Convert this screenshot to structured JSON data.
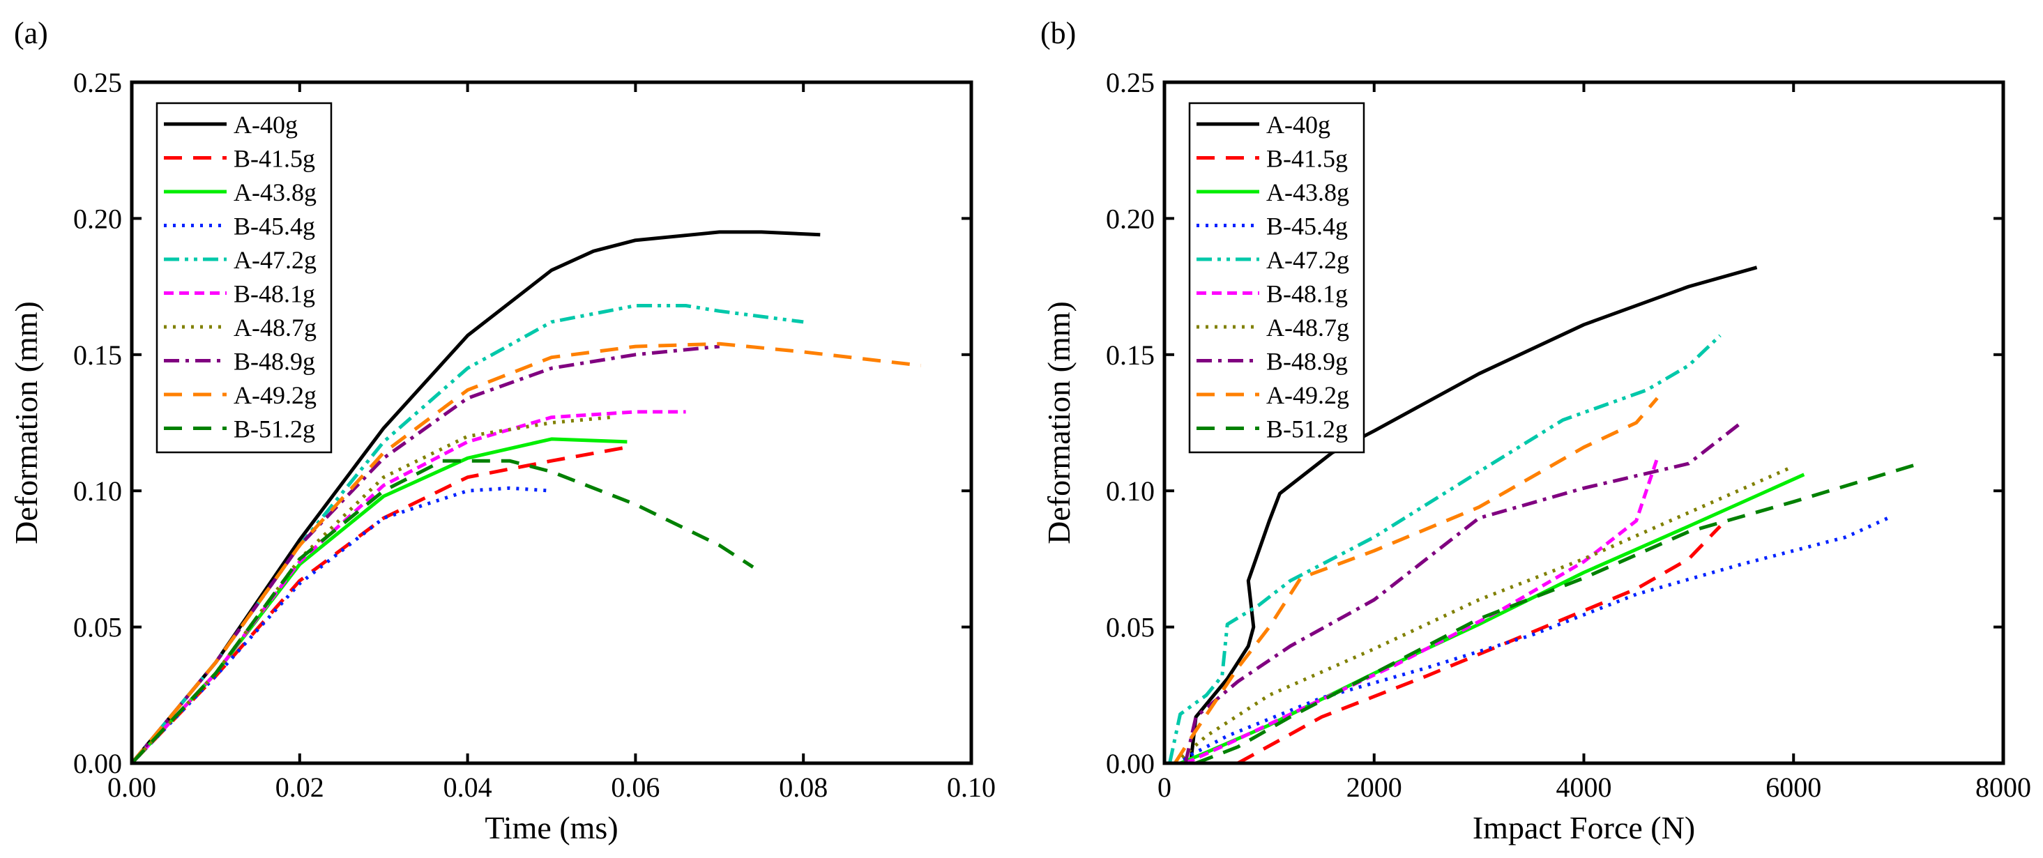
{
  "chart_data": [
    {
      "panel": "(a)",
      "type": "line",
      "xlabel": "Time (ms)",
      "ylabel": "Deformation (mm)",
      "xlim": [
        0,
        0.1
      ],
      "ylim": [
        0,
        0.25
      ],
      "xticks": [
        "0.00",
        "0.02",
        "0.04",
        "0.06",
        "0.08",
        "0.10"
      ],
      "yticks": [
        "0.00",
        "0.05",
        "0.10",
        "0.15",
        "0.20",
        "0.25"
      ],
      "legend_position": "top-left",
      "series": [
        {
          "name": "A-40g",
          "color": "#000000",
          "dash": "solid",
          "points": [
            [
              0,
              0
            ],
            [
              0.01,
              0.037
            ],
            [
              0.02,
              0.082
            ],
            [
              0.03,
              0.123
            ],
            [
              0.04,
              0.157
            ],
            [
              0.05,
              0.181
            ],
            [
              0.055,
              0.188
            ],
            [
              0.06,
              0.192
            ],
            [
              0.07,
              0.195
            ],
            [
              0.075,
              0.195
            ],
            [
              0.082,
              0.194
            ]
          ]
        },
        {
          "name": "B-41.5g",
          "color": "#ff0000",
          "dash": "long-dash",
          "points": [
            [
              0,
              0
            ],
            [
              0.01,
              0.032
            ],
            [
              0.02,
              0.067
            ],
            [
              0.03,
              0.09
            ],
            [
              0.04,
              0.105
            ],
            [
              0.05,
              0.111
            ],
            [
              0.059,
              0.116
            ]
          ]
        },
        {
          "name": "A-43.8g",
          "color": "#00ee00",
          "dash": "solid",
          "points": [
            [
              0,
              0
            ],
            [
              0.01,
              0.033
            ],
            [
              0.02,
              0.073
            ],
            [
              0.03,
              0.098
            ],
            [
              0.04,
              0.112
            ],
            [
              0.05,
              0.119
            ],
            [
              0.059,
              0.118
            ]
          ]
        },
        {
          "name": "B-45.4g",
          "color": "#0022ff",
          "dash": "dot",
          "points": [
            [
              0,
              0
            ],
            [
              0.01,
              0.032
            ],
            [
              0.02,
              0.066
            ],
            [
              0.03,
              0.09
            ],
            [
              0.04,
              0.1
            ],
            [
              0.045,
              0.101
            ],
            [
              0.05,
              0.1
            ]
          ]
        },
        {
          "name": "A-47.2g",
          "color": "#00c8aa",
          "dash": "dash-dot-dot",
          "points": [
            [
              0,
              0
            ],
            [
              0.01,
              0.037
            ],
            [
              0.02,
              0.08
            ],
            [
              0.03,
              0.118
            ],
            [
              0.04,
              0.145
            ],
            [
              0.05,
              0.162
            ],
            [
              0.06,
              0.168
            ],
            [
              0.066,
              0.168
            ],
            [
              0.07,
              0.166
            ],
            [
              0.08,
              0.162
            ]
          ]
        },
        {
          "name": "B-48.1g",
          "color": "#ff00ff",
          "dash": "short-dash",
          "points": [
            [
              0,
              0
            ],
            [
              0.01,
              0.033
            ],
            [
              0.02,
              0.074
            ],
            [
              0.03,
              0.102
            ],
            [
              0.04,
              0.118
            ],
            [
              0.05,
              0.127
            ],
            [
              0.06,
              0.129
            ],
            [
              0.066,
              0.129
            ]
          ]
        },
        {
          "name": "A-48.7g",
          "color": "#808000",
          "dash": "dot",
          "points": [
            [
              0,
              0
            ],
            [
              0.01,
              0.033
            ],
            [
              0.02,
              0.075
            ],
            [
              0.03,
              0.105
            ],
            [
              0.04,
              0.12
            ],
            [
              0.05,
              0.125
            ],
            [
              0.057,
              0.127
            ]
          ]
        },
        {
          "name": "B-48.9g",
          "color": "#800080",
          "dash": "dash-dot",
          "points": [
            [
              0,
              0
            ],
            [
              0.01,
              0.037
            ],
            [
              0.02,
              0.08
            ],
            [
              0.03,
              0.112
            ],
            [
              0.04,
              0.134
            ],
            [
              0.05,
              0.145
            ],
            [
              0.06,
              0.15
            ],
            [
              0.07,
              0.153
            ]
          ]
        },
        {
          "name": "A-49.2g",
          "color": "#ff8000",
          "dash": "long-dash",
          "points": [
            [
              0,
              0
            ],
            [
              0.01,
              0.037
            ],
            [
              0.02,
              0.08
            ],
            [
              0.03,
              0.114
            ],
            [
              0.04,
              0.137
            ],
            [
              0.05,
              0.149
            ],
            [
              0.06,
              0.153
            ],
            [
              0.07,
              0.154
            ],
            [
              0.08,
              0.151
            ],
            [
              0.094,
              0.146
            ]
          ]
        },
        {
          "name": "B-51.2g",
          "color": "#008000",
          "dash": "long-dash",
          "points": [
            [
              0,
              0
            ],
            [
              0.01,
              0.033
            ],
            [
              0.02,
              0.075
            ],
            [
              0.03,
              0.1
            ],
            [
              0.037,
              0.111
            ],
            [
              0.045,
              0.111
            ],
            [
              0.05,
              0.107
            ],
            [
              0.06,
              0.095
            ],
            [
              0.07,
              0.08
            ],
            [
              0.074,
              0.072
            ]
          ]
        }
      ]
    },
    {
      "panel": "(b)",
      "type": "line",
      "xlabel": "Impact Force (N)",
      "ylabel": "Deformation (mm)",
      "xlim": [
        0,
        8000
      ],
      "ylim": [
        0,
        0.25
      ],
      "xticks": [
        "0",
        "2000",
        "4000",
        "6000",
        "8000"
      ],
      "yticks": [
        "0.00",
        "0.05",
        "0.10",
        "0.15",
        "0.20",
        "0.25"
      ],
      "legend_position": "top-left",
      "series": [
        {
          "name": "A-40g",
          "color": "#000000",
          "dash": "solid",
          "points": [
            [
              250,
              0
            ],
            [
              300,
              0.017
            ],
            [
              600,
              0.031
            ],
            [
              800,
              0.043
            ],
            [
              850,
              0.05
            ],
            [
              800,
              0.067
            ],
            [
              1000,
              0.089
            ],
            [
              1100,
              0.099
            ],
            [
              1600,
              0.114
            ],
            [
              2000,
              0.122
            ],
            [
              3000,
              0.143
            ],
            [
              4000,
              0.161
            ],
            [
              5000,
              0.175
            ],
            [
              5650,
              0.182
            ]
          ]
        },
        {
          "name": "B-41.5g",
          "color": "#ff0000",
          "dash": "long-dash",
          "points": [
            [
              700,
              0
            ],
            [
              1500,
              0.017
            ],
            [
              2500,
              0.032
            ],
            [
              3500,
              0.048
            ],
            [
              4500,
              0.064
            ],
            [
              5000,
              0.075
            ],
            [
              5300,
              0.087
            ]
          ]
        },
        {
          "name": "A-43.8g",
          "color": "#00ee00",
          "dash": "solid",
          "points": [
            [
              150,
              0
            ],
            [
              400,
              0.004
            ],
            [
              1000,
              0.014
            ],
            [
              2000,
              0.033
            ],
            [
              3000,
              0.051
            ],
            [
              4000,
              0.07
            ],
            [
              5000,
              0.087
            ],
            [
              6100,
              0.106
            ]
          ]
        },
        {
          "name": "B-45.4g",
          "color": "#0022ff",
          "dash": "dot",
          "points": [
            [
              100,
              0
            ],
            [
              600,
              0.01
            ],
            [
              1500,
              0.024
            ],
            [
              2500,
              0.035
            ],
            [
              3500,
              0.047
            ],
            [
              4500,
              0.062
            ],
            [
              5500,
              0.073
            ],
            [
              6500,
              0.083
            ],
            [
              6900,
              0.09
            ]
          ]
        },
        {
          "name": "A-47.2g",
          "color": "#00c8aa",
          "dash": "dash-dot-dot",
          "points": [
            [
              50,
              0
            ],
            [
              150,
              0.018
            ],
            [
              400,
              0.025
            ],
            [
              550,
              0.032
            ],
            [
              600,
              0.051
            ],
            [
              900,
              0.058
            ],
            [
              1200,
              0.067
            ],
            [
              2000,
              0.083
            ],
            [
              3000,
              0.107
            ],
            [
              3800,
              0.126
            ],
            [
              4600,
              0.137
            ],
            [
              5000,
              0.146
            ],
            [
              5300,
              0.157
            ]
          ]
        },
        {
          "name": "B-48.1g",
          "color": "#ff00ff",
          "dash": "short-dash",
          "points": [
            [
              200,
              0
            ],
            [
              600,
              0.007
            ],
            [
              1200,
              0.018
            ],
            [
              2200,
              0.036
            ],
            [
              3200,
              0.056
            ],
            [
              4000,
              0.074
            ],
            [
              4500,
              0.089
            ],
            [
              4700,
              0.112
            ]
          ]
        },
        {
          "name": "A-48.7g",
          "color": "#808000",
          "dash": "dot",
          "points": [
            [
              100,
              0
            ],
            [
              400,
              0.01
            ],
            [
              1000,
              0.025
            ],
            [
              2000,
              0.042
            ],
            [
              3000,
              0.06
            ],
            [
              4000,
              0.075
            ],
            [
              5000,
              0.092
            ],
            [
              6000,
              0.109
            ]
          ]
        },
        {
          "name": "B-48.9g",
          "color": "#800080",
          "dash": "dash-dot",
          "points": [
            [
              200,
              0
            ],
            [
              300,
              0.017
            ],
            [
              700,
              0.03
            ],
            [
              1200,
              0.043
            ],
            [
              2000,
              0.06
            ],
            [
              3000,
              0.09
            ],
            [
              4000,
              0.101
            ],
            [
              5000,
              0.11
            ],
            [
              5500,
              0.125
            ]
          ]
        },
        {
          "name": "A-49.2g",
          "color": "#ff8000",
          "dash": "long-dash",
          "points": [
            [
              100,
              0
            ],
            [
              300,
              0.012
            ],
            [
              700,
              0.035
            ],
            [
              1000,
              0.05
            ],
            [
              1300,
              0.068
            ],
            [
              2000,
              0.078
            ],
            [
              3000,
              0.094
            ],
            [
              4000,
              0.116
            ],
            [
              4500,
              0.125
            ],
            [
              4700,
              0.134
            ]
          ]
        },
        {
          "name": "B-51.2g",
          "color": "#008000",
          "dash": "long-dash",
          "points": [
            [
              300,
              0
            ],
            [
              700,
              0.006
            ],
            [
              1200,
              0.017
            ],
            [
              2000,
              0.033
            ],
            [
              3000,
              0.053
            ],
            [
              4000,
              0.068
            ],
            [
              5000,
              0.085
            ],
            [
              6000,
              0.096
            ],
            [
              7200,
              0.11
            ]
          ]
        }
      ]
    }
  ]
}
